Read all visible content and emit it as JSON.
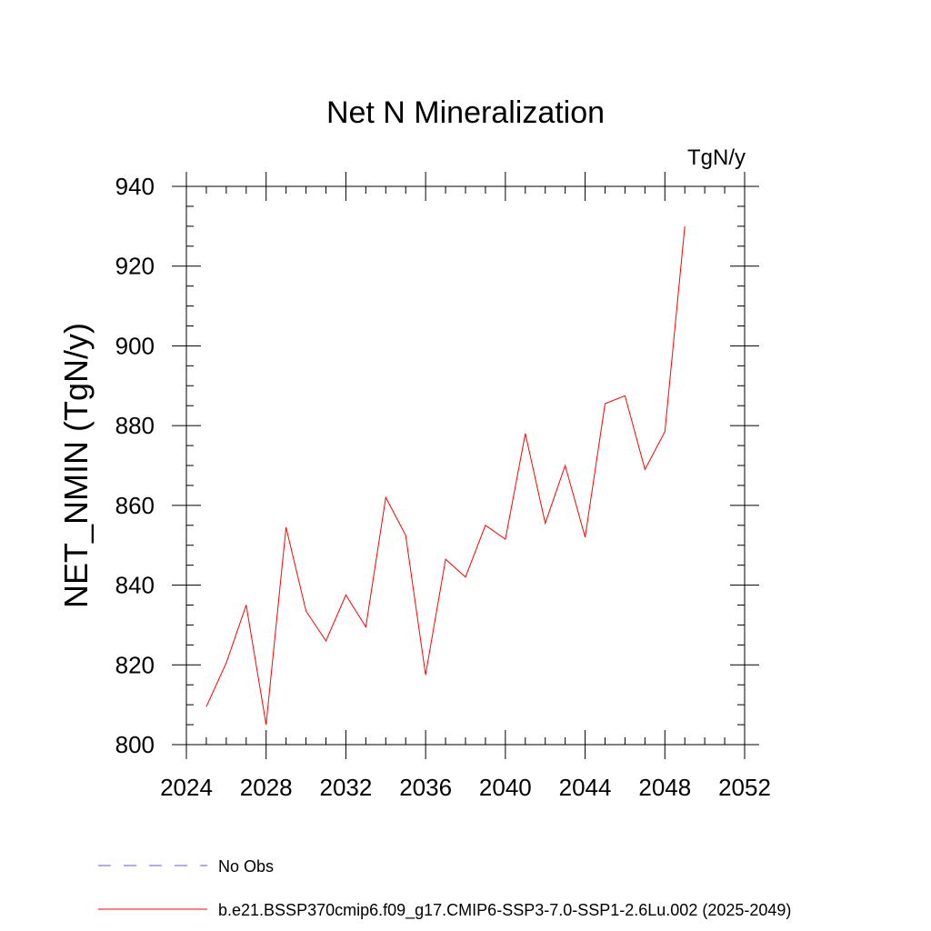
{
  "chart_data": {
    "type": "line",
    "title": "Net N Mineralization",
    "units_label": "TgN/y",
    "ylabel": "NET_NMIN  (TgN/y)",
    "xlabel": "",
    "xlim": [
      2024,
      2052
    ],
    "ylim": [
      800,
      940
    ],
    "x_ticks": [
      2024,
      2028,
      2032,
      2036,
      2040,
      2044,
      2048,
      2052
    ],
    "y_ticks": [
      800,
      820,
      840,
      860,
      880,
      900,
      920,
      940
    ],
    "grid": false,
    "legend_position": "bottom-left",
    "series": [
      {
        "name": "b.e21.BSSP370cmip6.f09_g17.CMIP6-SSP3-7.0-SSP1-2.6Lu.002 (2025-2049)",
        "color": "#ff0000",
        "dash": "solid",
        "x": [
          2025,
          2026,
          2027,
          2028,
          2029,
          2030,
          2031,
          2032,
          2033,
          2034,
          2035,
          2036,
          2037,
          2038,
          2039,
          2040,
          2041,
          2042,
          2043,
          2044,
          2045,
          2046,
          2047,
          2048,
          2049
        ],
        "values": [
          809.5,
          820.5,
          835,
          805,
          854.5,
          833.5,
          826,
          837.5,
          829.5,
          862,
          852.5,
          817.5,
          846.5,
          842,
          855,
          851.5,
          878,
          855.5,
          870,
          852,
          885.5,
          887.5,
          869,
          878.5,
          930
        ]
      }
    ],
    "legend": [
      {
        "label": "No Obs",
        "color": "#6a5acd",
        "dash": "dashed"
      },
      {
        "label": "b.e21.BSSP370cmip6.f09_g17.CMIP6-SSP3-7.0-SSP1-2.6Lu.002 (2025-2049)",
        "color": "#ff0000",
        "dash": "solid"
      }
    ]
  }
}
